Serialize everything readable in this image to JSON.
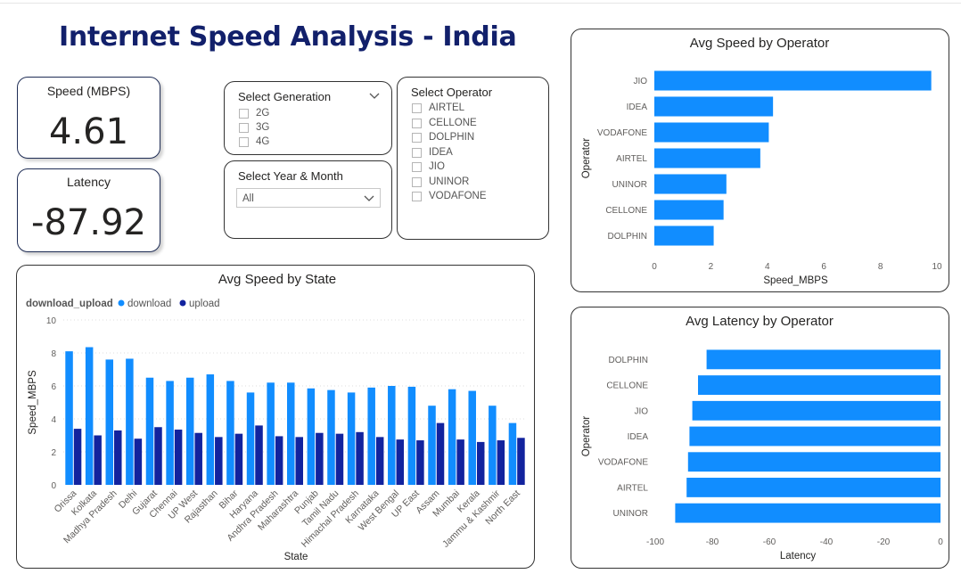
{
  "title": "Internet Speed Analysis - India",
  "kpis": {
    "speed": {
      "label": "Speed (MBPS)",
      "value": "4.61"
    },
    "latency": {
      "label": "Latency",
      "value": "-87.92"
    }
  },
  "slicers": {
    "generation": {
      "title": "Select Generation",
      "options": [
        "2G",
        "3G",
        "4G"
      ]
    },
    "year_month": {
      "title": "Select Year & Month",
      "value": "All"
    },
    "operator": {
      "title": "Select Operator",
      "options": [
        "AIRTEL",
        "CELLONE",
        "DOLPHIN",
        "IDEA",
        "JIO",
        "UNINOR",
        "VODAFONE"
      ]
    }
  },
  "colors": {
    "download": "#118dff",
    "upload": "#12239e",
    "title": "#12206b"
  },
  "chart_data": [
    {
      "id": "state",
      "type": "bar",
      "title": "Avg Speed by State",
      "legend_title": "download_upload",
      "xlabel": "State",
      "ylabel": "Speed_MBPS",
      "ylim": [
        0,
        10
      ],
      "yticks": [
        0,
        2,
        4,
        6,
        8,
        10
      ],
      "grid": true,
      "legend_position": "top-left",
      "categories": [
        "Orissa",
        "Kolkata",
        "Madhya Pradesh",
        "Delhi",
        "Gujarat",
        "Chennai",
        "UP West",
        "Rajasthan",
        "Bihar",
        "Haryana",
        "Andhra Pradesh",
        "Maharashtra",
        "Punjab",
        "Tamil Nadu",
        "Himachal Pradesh",
        "Karnataka",
        "West Bengal",
        "UP East",
        "Assam",
        "Mumbai",
        "Kerala",
        "Jammu & Kashmir",
        "North East"
      ],
      "series": [
        {
          "name": "download",
          "values": [
            8.1,
            8.35,
            7.6,
            7.65,
            6.5,
            6.3,
            6.5,
            6.7,
            6.3,
            5.6,
            6.2,
            6.2,
            5.85,
            5.75,
            5.6,
            5.9,
            6.0,
            5.95,
            4.8,
            5.8,
            5.7,
            4.8,
            3.75
          ]
        },
        {
          "name": "upload",
          "values": [
            3.4,
            3.0,
            3.3,
            2.8,
            3.5,
            3.35,
            3.15,
            2.9,
            3.1,
            3.6,
            2.95,
            2.9,
            3.15,
            3.1,
            3.2,
            2.9,
            2.75,
            2.7,
            3.75,
            2.75,
            2.6,
            2.7,
            2.85
          ]
        }
      ]
    },
    {
      "id": "op_speed",
      "type": "bar",
      "orientation": "horizontal",
      "title": "Avg Speed by Operator",
      "xlabel": "Speed_MBPS",
      "ylabel": "Operator",
      "xlim": [
        0,
        10
      ],
      "xticks": [
        0,
        2,
        4,
        6,
        8,
        10
      ],
      "categories": [
        "JIO",
        "IDEA",
        "VODAFONE",
        "AIRTEL",
        "UNINOR",
        "CELLONE",
        "DOLPHIN"
      ],
      "values": [
        9.8,
        4.2,
        4.05,
        3.75,
        2.55,
        2.45,
        2.1
      ]
    },
    {
      "id": "op_latency",
      "type": "bar",
      "orientation": "horizontal",
      "title": "Avg Latency by Operator",
      "xlabel": "Latency",
      "ylabel": "Operator",
      "xlim": [
        -100,
        0
      ],
      "xticks": [
        -100,
        -80,
        -60,
        -40,
        -20,
        0
      ],
      "categories": [
        "DOLPHIN",
        "CELLONE",
        "JIO",
        "IDEA",
        "VODAFONE",
        "AIRTEL",
        "UNINOR"
      ],
      "values": [
        -82,
        -85,
        -87,
        -88,
        -88.5,
        -89,
        -93
      ]
    }
  ]
}
